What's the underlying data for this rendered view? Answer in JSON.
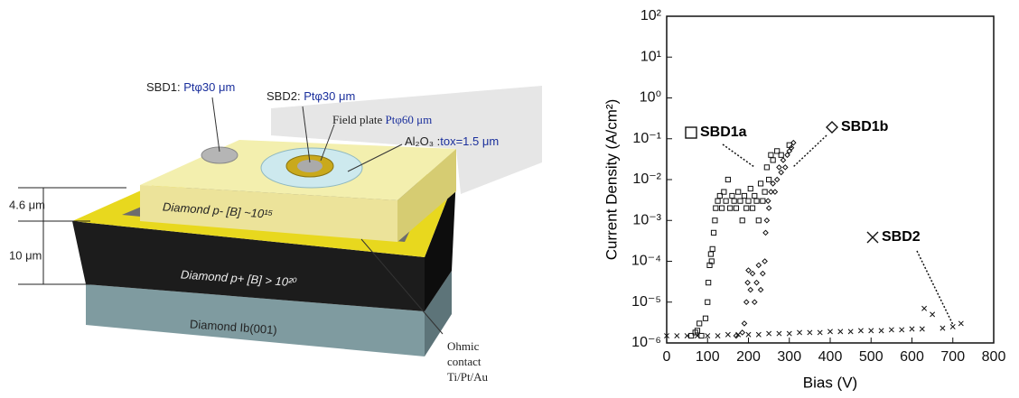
{
  "diagram": {
    "sbd1": "SBD1:",
    "sbd1_spec": "Ptφ30 μm",
    "sbd2": "SBD2:",
    "sbd2_spec": "Ptφ30 μm",
    "field_plate": "Field plate",
    "field_plate_spec": "Ptφ60 μm",
    "oxide": "Al₂O₃ :",
    "oxide_spec": "tox=1.5 μm",
    "thickness_top": "4.6 μm",
    "thickness_bottom": "10 μm",
    "layer_p_minus": "Diamond p- [B] ~10¹⁵",
    "layer_p_plus": "Diamond p+ [B] > 10²⁰",
    "substrate": "Diamond Ib(001)",
    "ohmic": [
      "Ohmic",
      "contact",
      "Ti/Pt/Au"
    ]
  },
  "chart_data": {
    "type": "scatter",
    "xlabel": "Bias (V)",
    "ylabel": "Current Density (A/cm²)",
    "xlim": [
      0,
      800
    ],
    "xticks": [
      0,
      100,
      200,
      300,
      400,
      500,
      600,
      700,
      800
    ],
    "ylim": [
      1e-06,
      100
    ],
    "yscale": "log",
    "yticks": [
      {
        "value": 1e-06,
        "label": "10⁻⁶"
      },
      {
        "value": 1e-05,
        "label": "10⁻⁵"
      },
      {
        "value": 0.0001,
        "label": "10⁻⁴"
      },
      {
        "value": 0.001,
        "label": "10⁻³"
      },
      {
        "value": 0.01,
        "label": "10⁻²"
      },
      {
        "value": 0.1,
        "label": "10⁻¹"
      },
      {
        "value": 1,
        "label": "10⁰"
      },
      {
        "value": 10,
        "label": "10¹"
      },
      {
        "value": 100,
        "label": "10²"
      }
    ],
    "grid": false,
    "series": [
      {
        "name": "SBD1a",
        "marker": "square",
        "color": "#111111",
        "x": [
          60,
          70,
          75,
          80,
          85,
          95,
          100,
          102,
          105,
          108,
          110,
          112,
          115,
          118,
          120,
          125,
          130,
          135,
          140,
          145,
          150,
          155,
          160,
          165,
          170,
          175,
          180,
          185,
          190,
          195,
          200,
          205,
          210,
          215,
          220,
          225,
          230,
          235,
          240,
          245,
          250,
          255,
          260,
          270,
          280,
          300
        ],
        "values": [
          1.5e-06,
          1.8e-06,
          2e-06,
          3e-06,
          1.5e-06,
          4e-06,
          1e-05,
          3e-05,
          8e-05,
          0.00015,
          0.0001,
          0.0002,
          0.0005,
          0.001,
          0.002,
          0.003,
          0.004,
          0.002,
          0.005,
          0.003,
          0.01,
          0.002,
          0.004,
          0.003,
          0.002,
          0.005,
          0.003,
          0.001,
          0.004,
          0.002,
          0.003,
          0.006,
          0.002,
          0.004,
          0.003,
          0.001,
          0.008,
          0.003,
          0.005,
          0.02,
          0.01,
          0.04,
          0.03,
          0.05,
          0.04,
          0.07
        ]
      },
      {
        "name": "SBD1b",
        "marker": "diamond",
        "color": "#111111",
        "x": [
          170,
          185,
          190,
          195,
          198,
          200,
          205,
          210,
          215,
          220,
          225,
          230,
          235,
          240,
          242,
          245,
          248,
          250,
          255,
          260,
          265,
          270,
          275,
          280,
          285,
          290,
          295,
          300,
          305,
          310
        ],
        "values": [
          1.5e-06,
          1.8e-06,
          3e-06,
          1e-05,
          3e-05,
          6e-05,
          2e-05,
          5e-05,
          1e-05,
          3e-05,
          8e-05,
          2e-05,
          5e-05,
          0.0001,
          0.0005,
          0.001,
          0.003,
          0.002,
          0.005,
          0.008,
          0.005,
          0.01,
          0.02,
          0.015,
          0.03,
          0.02,
          0.04,
          0.05,
          0.06,
          0.08
        ]
      },
      {
        "name": "SBD2",
        "marker": "x",
        "color": "#111111",
        "x": [
          0,
          25,
          50,
          75,
          100,
          125,
          150,
          175,
          200,
          225,
          250,
          275,
          300,
          325,
          350,
          375,
          400,
          425,
          450,
          475,
          500,
          525,
          550,
          575,
          600,
          625,
          630,
          650,
          675,
          700,
          720
        ],
        "values": [
          1.5e-06,
          1.5e-06,
          1.5e-06,
          1.5e-06,
          1.5e-06,
          1.5e-06,
          1.6e-06,
          1.6e-06,
          1.6e-06,
          1.6e-06,
          1.7e-06,
          1.7e-06,
          1.7e-06,
          1.8e-06,
          1.8e-06,
          1.8e-06,
          1.9e-06,
          1.9e-06,
          1.9e-06,
          2e-06,
          2e-06,
          2e-06,
          2.1e-06,
          2.1e-06,
          2.2e-06,
          2.2e-06,
          7e-06,
          5e-06,
          2.3e-06,
          2.5e-06,
          3e-06
        ]
      }
    ]
  }
}
